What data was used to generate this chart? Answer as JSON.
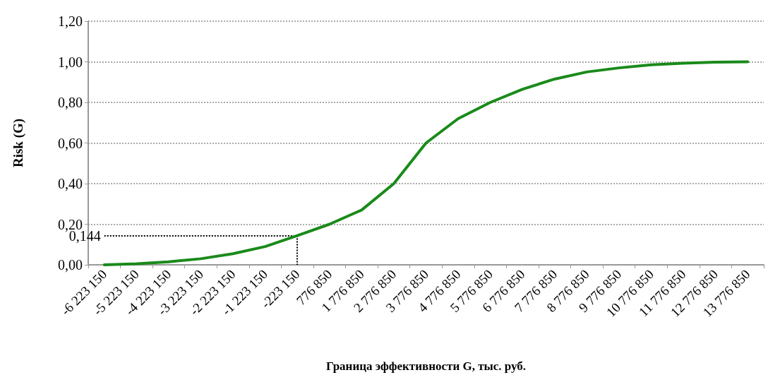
{
  "chart_data": {
    "type": "line",
    "xlabel": "Граница эффективности G, тыс. руб.",
    "ylabel": "Risk (G)",
    "categories": [
      "-6 223 150",
      "-5 223 150",
      "-4 223 150",
      "-3 223 150",
      "-2 223 150",
      "-1 223 150",
      "-223 150",
      "776 850",
      "1 776 850",
      "2 776 850",
      "3 776 850",
      "4 776 850",
      "5 776 850",
      "6 776 850",
      "7 776 850",
      "8 776 850",
      "9 776 850",
      "10 776 850",
      "11 776 850",
      "12 776 850",
      "13 776 850"
    ],
    "series": [
      {
        "color": "#1a8a1a",
        "values": [
          0,
          0.005,
          0.015,
          0.03,
          0.055,
          0.09,
          0.144,
          0.2,
          0.27,
          0.4,
          0.6,
          0.72,
          0.8,
          0.865,
          0.915,
          0.95,
          0.97,
          0.985,
          0.993,
          0.998,
          1.0
        ]
      }
    ],
    "ylim": [
      0,
      1.2
    ],
    "yticks": [
      {
        "value": 0,
        "label": "0,00"
      },
      {
        "value": 0.2,
        "label": "0,20"
      },
      {
        "value": 0.4,
        "label": "0,40"
      },
      {
        "value": 0.6,
        "label": "0,60"
      },
      {
        "value": 0.8,
        "label": "0,80"
      },
      {
        "value": 1.0,
        "label": "1,00"
      },
      {
        "value": 1.2,
        "label": "1,20"
      }
    ],
    "ref_lines": [
      {
        "axis": "y",
        "value": 0.144,
        "label": "0,144",
        "line_style": "dotted",
        "color": "#000000"
      },
      {
        "axis": "x",
        "value": "-223 150",
        "line_style": "dotted",
        "color": "#000000"
      }
    ],
    "grid": "y",
    "marker": "none",
    "line_style": "solid"
  }
}
